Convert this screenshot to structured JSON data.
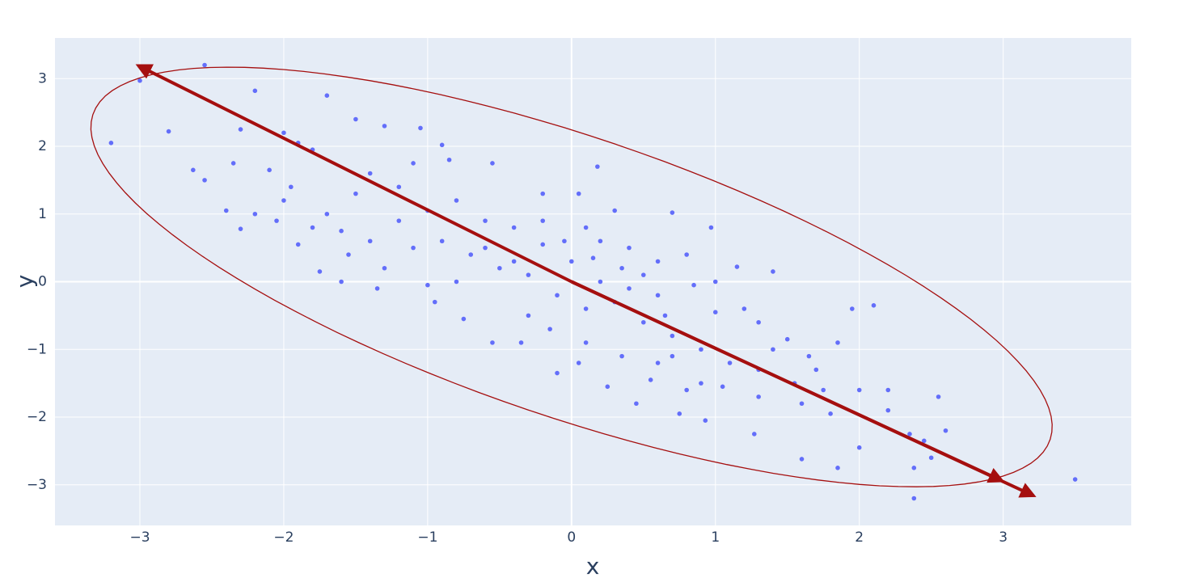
{
  "chart_data": {
    "type": "scatter",
    "x_label": "x",
    "y_label": "y",
    "xlim": [
      -3.59,
      3.89
    ],
    "ylim": [
      -3.6,
      3.6
    ],
    "xticks": [
      {
        "value": -3,
        "label": "−3"
      },
      {
        "value": -2,
        "label": "−2"
      },
      {
        "value": -1,
        "label": "−1"
      },
      0,
      1,
      2,
      3
    ],
    "yticks": [
      {
        "value": -3,
        "label": "−3"
      },
      {
        "value": -2,
        "label": "−2"
      },
      {
        "value": -1,
        "label": "−1"
      },
      0,
      1,
      2,
      3
    ],
    "grid": true,
    "color": "#636efa",
    "shape_color": "#a50f0f",
    "x": [
      -3.2,
      -3.0,
      -2.8,
      -2.55,
      -2.2,
      -1.7,
      -2.63,
      -2.55,
      -2.4,
      -2.3,
      -2.35,
      -2.3,
      -2.05,
      -1.9,
      -1.75,
      -1.6,
      -1.5,
      -1.3,
      -0.9,
      -1.05,
      0.18,
      3.5,
      2.38,
      2.6,
      2.55,
      2.1,
      1.95,
      2.2,
      1.6,
      1.85,
      1.27,
      0.93,
      0.75,
      2.0,
      2.35,
      2.45,
      2.5,
      2.38,
      1.4,
      1.15,
      0.97,
      0.7,
      0.3,
      0.05,
      -0.2,
      -0.55,
      -0.85,
      -1.1,
      -1.4,
      -1.8,
      -1.9,
      -2.0,
      -2.1,
      -1.95,
      -2.2,
      -1.8,
      -1.6,
      -1.3,
      -1.0,
      -0.75,
      -0.55,
      -0.35,
      -0.1,
      0.05,
      0.25,
      0.45,
      0.55,
      0.8,
      1.05,
      1.3,
      1.55,
      1.75,
      1.8,
      1.65,
      1.85,
      1.5,
      1.3,
      1.0,
      0.85,
      0.6,
      0.4,
      0.2,
      0.0,
      -0.2,
      -0.4,
      -0.6,
      -0.8,
      -1.0,
      -1.2,
      -1.4,
      -1.5,
      -1.2,
      -0.9,
      -0.7,
      -0.5,
      -0.3,
      -0.1,
      0.1,
      0.3,
      0.5,
      0.7,
      0.9,
      1.1,
      1.3,
      1.6,
      2.2,
      2.0,
      0.2,
      0.4,
      0.6,
      -0.6,
      -0.4,
      -1.1,
      0.8,
      1.0,
      1.2,
      -0.3,
      0.1,
      0.35,
      0.6,
      -0.8,
      -0.95,
      -1.35,
      -0.2,
      0.1,
      0.35,
      -0.05,
      0.15,
      0.5,
      0.65,
      -0.15,
      1.4,
      1.7,
      -1.7,
      -2.0,
      -1.55,
      0.9,
      0.7
    ],
    "y": [
      2.05,
      2.97,
      2.22,
      3.2,
      2.82,
      2.75,
      1.65,
      1.5,
      1.05,
      0.78,
      1.75,
      2.25,
      0.9,
      0.55,
      0.15,
      0.0,
      2.4,
      2.3,
      2.02,
      2.27,
      1.7,
      -2.92,
      -3.2,
      -2.2,
      -1.7,
      -0.35,
      -0.4,
      -1.6,
      -2.62,
      -2.75,
      -2.25,
      -2.05,
      -1.95,
      -2.45,
      -2.25,
      -2.35,
      -2.6,
      -2.75,
      0.15,
      0.22,
      0.8,
      1.02,
      1.05,
      1.3,
      1.3,
      1.75,
      1.8,
      1.75,
      1.6,
      1.95,
      2.05,
      2.2,
      1.65,
      1.4,
      1.0,
      0.8,
      0.75,
      0.2,
      -0.05,
      -0.55,
      -0.9,
      -0.9,
      -1.35,
      -1.2,
      -1.55,
      -1.8,
      -1.45,
      -1.6,
      -1.55,
      -1.7,
      -1.5,
      -1.6,
      -1.95,
      -1.1,
      -0.9,
      -0.85,
      -0.6,
      -0.45,
      -0.05,
      0.3,
      0.5,
      0.6,
      0.3,
      0.55,
      0.8,
      0.9,
      1.2,
      1.05,
      0.9,
      0.6,
      1.3,
      1.4,
      0.6,
      0.4,
      0.2,
      0.1,
      -0.2,
      -0.4,
      -0.3,
      -0.6,
      -0.8,
      -1.0,
      -1.2,
      -1.3,
      -1.8,
      -1.9,
      -1.6,
      0.0,
      -0.1,
      -0.2,
      0.5,
      0.3,
      0.5,
      0.4,
      0.0,
      -0.4,
      -0.5,
      -0.9,
      -1.1,
      -1.2,
      0.0,
      -0.3,
      -0.1,
      0.9,
      0.8,
      0.2,
      0.6,
      0.35,
      0.1,
      -0.5,
      -0.7,
      -1.0,
      -1.3,
      1.0,
      1.2,
      0.4,
      -1.5,
      -1.1
    ],
    "ellipse": {
      "center": [
        0,
        0.07
      ],
      "semi_axes": [
        4.22,
        1.72
      ],
      "angle": -42
    },
    "arrows": [
      {
        "from": [
          0,
          0
        ],
        "to": [
          -3.01,
          3.19
        ]
      },
      {
        "from": [
          0,
          0
        ],
        "to": [
          3.21,
          -3.16
        ]
      },
      {
        "from": [
          0,
          0
        ],
        "to": [
          2.99,
          -2.94
        ]
      }
    ]
  }
}
